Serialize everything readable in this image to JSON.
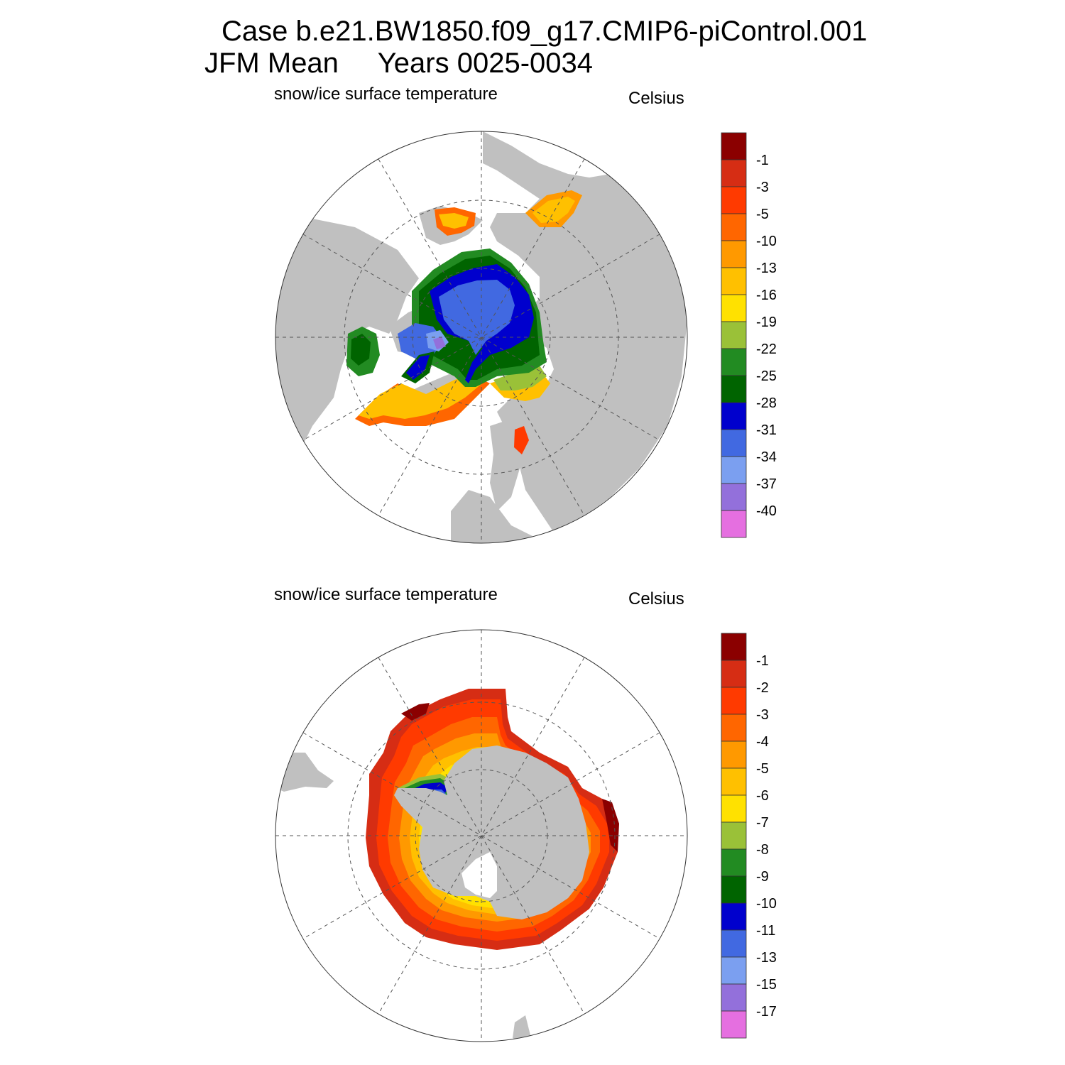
{
  "figure": {
    "title_line1": "Case b.e21.BW1850.f09_g17.CMIP6-piControl.001",
    "title_line2": "JFM Mean     Years 0025-0034"
  },
  "colors": {
    "land": "#c0c0c0",
    "ocean": "#ffffff",
    "grid": "#555555"
  },
  "panels": [
    {
      "id": "north",
      "variable": "snow/ice surface temperature",
      "units": "Celsius",
      "hemisphere": "northern",
      "colorbar": {
        "labels": [
          "-1",
          "-3",
          "-5",
          "-10",
          "-13",
          "-16",
          "-19",
          "-22",
          "-25",
          "-28",
          "-31",
          "-34",
          "-37",
          "-40"
        ],
        "colors": [
          "#8b0000",
          "#d62d14",
          "#ff3a00",
          "#ff6600",
          "#ff9900",
          "#ffc000",
          "#ffe100",
          "#9ac138",
          "#228b22",
          "#006400",
          "#0000cd",
          "#4169e1",
          "#7b9ff0",
          "#9370db",
          "#e56fe0"
        ]
      }
    },
    {
      "id": "south",
      "variable": "snow/ice surface temperature",
      "units": "Celsius",
      "hemisphere": "southern",
      "colorbar": {
        "labels": [
          "-1",
          "-2",
          "-3",
          "-4",
          "-5",
          "-6",
          "-7",
          "-8",
          "-9",
          "-10",
          "-11",
          "-13",
          "-15",
          "-17"
        ],
        "colors": [
          "#8b0000",
          "#d62d14",
          "#ff3a00",
          "#ff6600",
          "#ff9900",
          "#ffc000",
          "#ffe100",
          "#9ac138",
          "#228b22",
          "#006400",
          "#0000cd",
          "#4169e1",
          "#7b9ff0",
          "#9370db",
          "#e56fe0"
        ]
      }
    }
  ]
}
